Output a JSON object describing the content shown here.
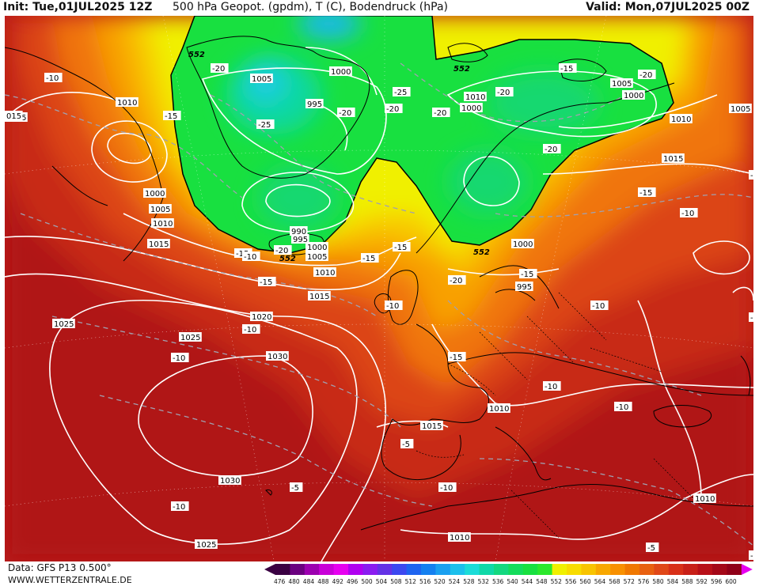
{
  "header": {
    "init": "Init: Tue,01JUL2025 12Z",
    "title": "500 hPa Geopot. (gpdm), T (C), Bodendruck (hPa)",
    "valid": "Valid: Mon,07JUL2025 00Z"
  },
  "footer": {
    "data_source": "Data: GFS P13 0.500°",
    "website": "WWW.WETTERZENTRALE.DE"
  },
  "colorbar": {
    "ticks": [
      "476",
      "480",
      "484",
      "488",
      "492",
      "496",
      "500",
      "504",
      "508",
      "512",
      "516",
      "520",
      "524",
      "528",
      "532",
      "536",
      "540",
      "544",
      "548",
      "552",
      "556",
      "560",
      "564",
      "568",
      "572",
      "576",
      "580",
      "584",
      "588",
      "592",
      "596",
      "600"
    ],
    "colors": [
      "#3a0042",
      "#6b0080",
      "#9c00b0",
      "#c800d8",
      "#e600f0",
      "#b000f0",
      "#8a1cf0",
      "#6432e6",
      "#3c48f0",
      "#1e64f0",
      "#1480f0",
      "#1aa0f0",
      "#1cc0ec",
      "#1cdcd8",
      "#10d8a8",
      "#14d880",
      "#14dc5c",
      "#18e040",
      "#2ce82c",
      "#f0f000",
      "#f8dc00",
      "#f8c400",
      "#f8a800",
      "#f89000",
      "#f07800",
      "#e86010",
      "#e04818",
      "#d83018",
      "#c82018",
      "#b81018",
      "#a40818",
      "#900018"
    ],
    "end_left_color": "#3a0042",
    "end_right_color": "#e600f0"
  },
  "map": {
    "pressure_labels": [
      {
        "text": "1005"
      },
      {
        "text": "1000"
      },
      {
        "text": "995"
      },
      {
        "text": "1010"
      },
      {
        "text": "1015"
      },
      {
        "text": "1000"
      },
      {
        "text": "1005"
      },
      {
        "text": "1010"
      },
      {
        "text": "1015"
      },
      {
        "text": "990"
      },
      {
        "text": "995"
      },
      {
        "text": "1000"
      },
      {
        "text": "1005"
      },
      {
        "text": "1010"
      },
      {
        "text": "1015"
      },
      {
        "text": "1020"
      },
      {
        "text": "1025"
      },
      {
        "text": "1030"
      },
      {
        "text": "1025"
      },
      {
        "text": "1030"
      },
      {
        "text": "1025"
      },
      {
        "text": "1010"
      },
      {
        "text": "1015"
      },
      {
        "text": "1010"
      },
      {
        "text": "1000"
      },
      {
        "text": "1005"
      },
      {
        "text": "1000"
      },
      {
        "text": "995"
      },
      {
        "text": "1000"
      },
      {
        "text": "1010"
      },
      {
        "text": "1005"
      },
      {
        "text": "1015"
      },
      {
        "text": "1010"
      },
      {
        "text": "1010"
      },
      {
        "text": "015"
      }
    ],
    "temperature_labels": [
      {
        "text": "-10"
      },
      {
        "text": "-15"
      },
      {
        "text": "-20"
      },
      {
        "text": "-25"
      },
      {
        "text": "-20"
      },
      {
        "text": "-25"
      },
      {
        "text": "-20"
      },
      {
        "text": "-20"
      },
      {
        "text": "-15"
      },
      {
        "text": "-20"
      },
      {
        "text": "-20"
      },
      {
        "text": "-20"
      },
      {
        "text": "-15"
      },
      {
        "text": "-15"
      },
      {
        "text": "-10"
      },
      {
        "text": "-15"
      },
      {
        "text": "-20"
      },
      {
        "text": "-15"
      },
      {
        "text": "-10"
      },
      {
        "text": "-10"
      },
      {
        "text": "-15"
      },
      {
        "text": "-10"
      },
      {
        "text": "-10"
      },
      {
        "text": "-10"
      },
      {
        "text": "-10"
      },
      {
        "text": "-10"
      },
      {
        "text": "-5"
      },
      {
        "text": "-5"
      },
      {
        "text": "-10"
      },
      {
        "text": "-10"
      },
      {
        "text": "-5"
      },
      {
        "text": "-20"
      },
      {
        "text": "-15"
      },
      {
        "text": "-10"
      },
      {
        "text": "-5"
      },
      {
        "text": "-10"
      },
      {
        "text": "-15"
      }
    ],
    "geopotential_labels": [
      {
        "text": "552"
      },
      {
        "text": "552"
      },
      {
        "text": "552"
      },
      {
        "text": "552"
      }
    ]
  }
}
